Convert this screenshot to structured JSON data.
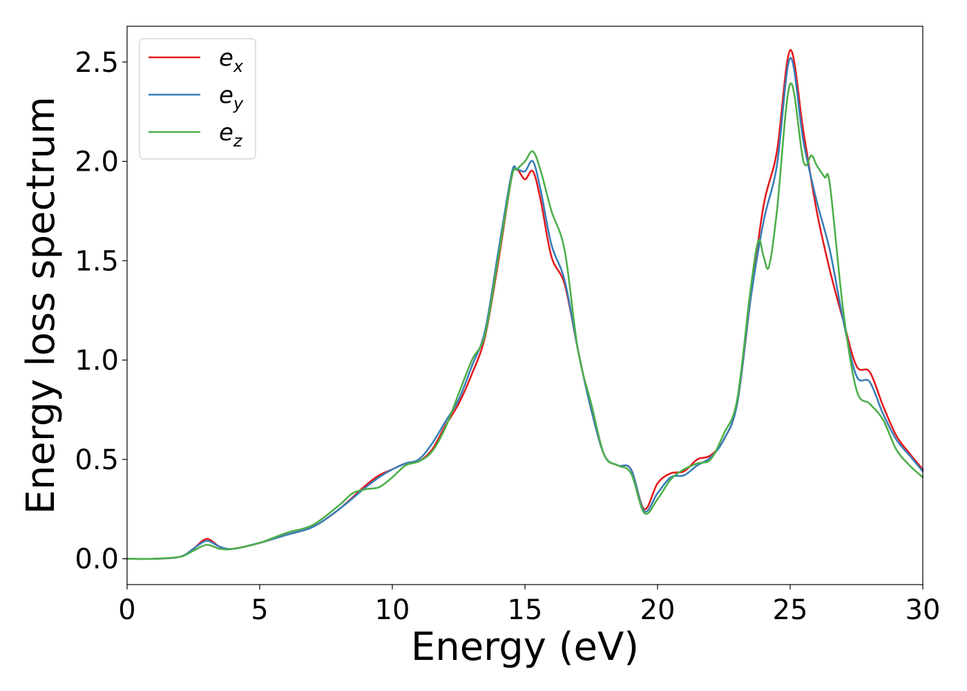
{
  "chart_data": {
    "type": "line",
    "title": "",
    "xlabel": "Energy (eV)",
    "ylabel": "Energy loss spectrum",
    "xlim": [
      0,
      30
    ],
    "ylim": [
      -0.13,
      2.68
    ],
    "xticks": [
      0,
      5,
      10,
      15,
      20,
      25,
      30
    ],
    "yticks": [
      "0.0",
      "0.5",
      "1.0",
      "1.5",
      "2.0",
      "2.5"
    ],
    "grid": false,
    "legend_position": "top-left",
    "series": [
      {
        "name": "e",
        "subscript": "x",
        "color": "#e41a1c",
        "points": [
          [
            0,
            0.0
          ],
          [
            1,
            0.0
          ],
          [
            2,
            0.01
          ],
          [
            2.5,
            0.05
          ],
          [
            3,
            0.1
          ],
          [
            3.5,
            0.06
          ],
          [
            4,
            0.05
          ],
          [
            5,
            0.08
          ],
          [
            6,
            0.12
          ],
          [
            7,
            0.16
          ],
          [
            8,
            0.25
          ],
          [
            9,
            0.37
          ],
          [
            9.5,
            0.42
          ],
          [
            10,
            0.45
          ],
          [
            10.5,
            0.48
          ],
          [
            11,
            0.49
          ],
          [
            11.5,
            0.55
          ],
          [
            12,
            0.67
          ],
          [
            12.5,
            0.78
          ],
          [
            13,
            0.93
          ],
          [
            13.5,
            1.12
          ],
          [
            14,
            1.5
          ],
          [
            14.5,
            1.92
          ],
          [
            14.7,
            1.96
          ],
          [
            15,
            1.91
          ],
          [
            15.3,
            1.95
          ],
          [
            15.6,
            1.8
          ],
          [
            16,
            1.52
          ],
          [
            16.5,
            1.38
          ],
          [
            17,
            1.05
          ],
          [
            17.5,
            0.75
          ],
          [
            18,
            0.52
          ],
          [
            18.5,
            0.47
          ],
          [
            19,
            0.45
          ],
          [
            19.5,
            0.25
          ],
          [
            20,
            0.38
          ],
          [
            20.5,
            0.43
          ],
          [
            21,
            0.44
          ],
          [
            21.5,
            0.5
          ],
          [
            22,
            0.52
          ],
          [
            22.5,
            0.6
          ],
          [
            23,
            0.78
          ],
          [
            23.5,
            1.3
          ],
          [
            24,
            1.78
          ],
          [
            24.5,
            2.05
          ],
          [
            25,
            2.56
          ],
          [
            25.5,
            2.15
          ],
          [
            26,
            1.75
          ],
          [
            26.5,
            1.45
          ],
          [
            27,
            1.2
          ],
          [
            27.5,
            0.97
          ],
          [
            28,
            0.94
          ],
          [
            28.5,
            0.77
          ],
          [
            29,
            0.62
          ],
          [
            29.5,
            0.53
          ],
          [
            30,
            0.45
          ]
        ]
      },
      {
        "name": "e",
        "subscript": "y",
        "color": "#377eb8",
        "points": [
          [
            0,
            0.0
          ],
          [
            1,
            0.0
          ],
          [
            2,
            0.01
          ],
          [
            2.5,
            0.05
          ],
          [
            3,
            0.09
          ],
          [
            3.5,
            0.06
          ],
          [
            4,
            0.05
          ],
          [
            5,
            0.08
          ],
          [
            6,
            0.12
          ],
          [
            7,
            0.16
          ],
          [
            8,
            0.25
          ],
          [
            9,
            0.36
          ],
          [
            9.5,
            0.41
          ],
          [
            10,
            0.45
          ],
          [
            10.5,
            0.48
          ],
          [
            11,
            0.5
          ],
          [
            11.5,
            0.58
          ],
          [
            12,
            0.69
          ],
          [
            12.5,
            0.8
          ],
          [
            13,
            0.97
          ],
          [
            13.5,
            1.15
          ],
          [
            14,
            1.55
          ],
          [
            14.5,
            1.94
          ],
          [
            14.7,
            1.96
          ],
          [
            15,
            1.95
          ],
          [
            15.3,
            2.0
          ],
          [
            15.6,
            1.85
          ],
          [
            16,
            1.58
          ],
          [
            16.5,
            1.4
          ],
          [
            17,
            1.05
          ],
          [
            17.5,
            0.75
          ],
          [
            18,
            0.52
          ],
          [
            18.5,
            0.47
          ],
          [
            19,
            0.45
          ],
          [
            19.5,
            0.24
          ],
          [
            20,
            0.33
          ],
          [
            20.5,
            0.41
          ],
          [
            21,
            0.42
          ],
          [
            21.5,
            0.47
          ],
          [
            22,
            0.51
          ],
          [
            22.5,
            0.6
          ],
          [
            23,
            0.78
          ],
          [
            23.5,
            1.3
          ],
          [
            24,
            1.7
          ],
          [
            24.5,
            1.98
          ],
          [
            25,
            2.52
          ],
          [
            25.5,
            2.1
          ],
          [
            26,
            1.8
          ],
          [
            26.5,
            1.55
          ],
          [
            27,
            1.2
          ],
          [
            27.5,
            0.92
          ],
          [
            28,
            0.89
          ],
          [
            28.5,
            0.73
          ],
          [
            29,
            0.6
          ],
          [
            29.5,
            0.52
          ],
          [
            30,
            0.44
          ]
        ]
      },
      {
        "name": "e",
        "subscript": "z",
        "color": "#4daf4a",
        "points": [
          [
            0,
            0.0
          ],
          [
            1,
            0.0
          ],
          [
            2,
            0.01
          ],
          [
            2.5,
            0.04
          ],
          [
            3,
            0.07
          ],
          [
            3.5,
            0.05
          ],
          [
            4,
            0.05
          ],
          [
            5,
            0.08
          ],
          [
            6,
            0.13
          ],
          [
            7,
            0.17
          ],
          [
            8,
            0.27
          ],
          [
            8.5,
            0.33
          ],
          [
            9,
            0.35
          ],
          [
            9.5,
            0.36
          ],
          [
            10,
            0.41
          ],
          [
            10.5,
            0.47
          ],
          [
            11,
            0.49
          ],
          [
            11.5,
            0.54
          ],
          [
            12,
            0.66
          ],
          [
            12.5,
            0.83
          ],
          [
            13,
            1.0
          ],
          [
            13.5,
            1.13
          ],
          [
            14,
            1.52
          ],
          [
            14.5,
            1.92
          ],
          [
            14.7,
            1.96
          ],
          [
            15,
            2.0
          ],
          [
            15.3,
            2.05
          ],
          [
            15.6,
            1.95
          ],
          [
            16,
            1.75
          ],
          [
            16.5,
            1.55
          ],
          [
            17,
            1.05
          ],
          [
            17.5,
            0.78
          ],
          [
            18,
            0.52
          ],
          [
            18.5,
            0.47
          ],
          [
            19,
            0.43
          ],
          [
            19.5,
            0.23
          ],
          [
            20,
            0.3
          ],
          [
            20.5,
            0.4
          ],
          [
            21,
            0.45
          ],
          [
            21.5,
            0.48
          ],
          [
            22,
            0.5
          ],
          [
            22.5,
            0.63
          ],
          [
            23,
            0.8
          ],
          [
            23.5,
            1.35
          ],
          [
            23.8,
            1.6
          ],
          [
            24,
            1.52
          ],
          [
            24.2,
            1.47
          ],
          [
            24.5,
            1.75
          ],
          [
            25,
            2.39
          ],
          [
            25.5,
            2.0
          ],
          [
            25.8,
            2.03
          ],
          [
            26,
            1.98
          ],
          [
            26.3,
            1.92
          ],
          [
            26.5,
            1.88
          ],
          [
            27,
            1.25
          ],
          [
            27.5,
            0.85
          ],
          [
            28,
            0.78
          ],
          [
            28.5,
            0.7
          ],
          [
            29,
            0.55
          ],
          [
            29.5,
            0.47
          ],
          [
            30,
            0.41
          ]
        ]
      }
    ]
  }
}
